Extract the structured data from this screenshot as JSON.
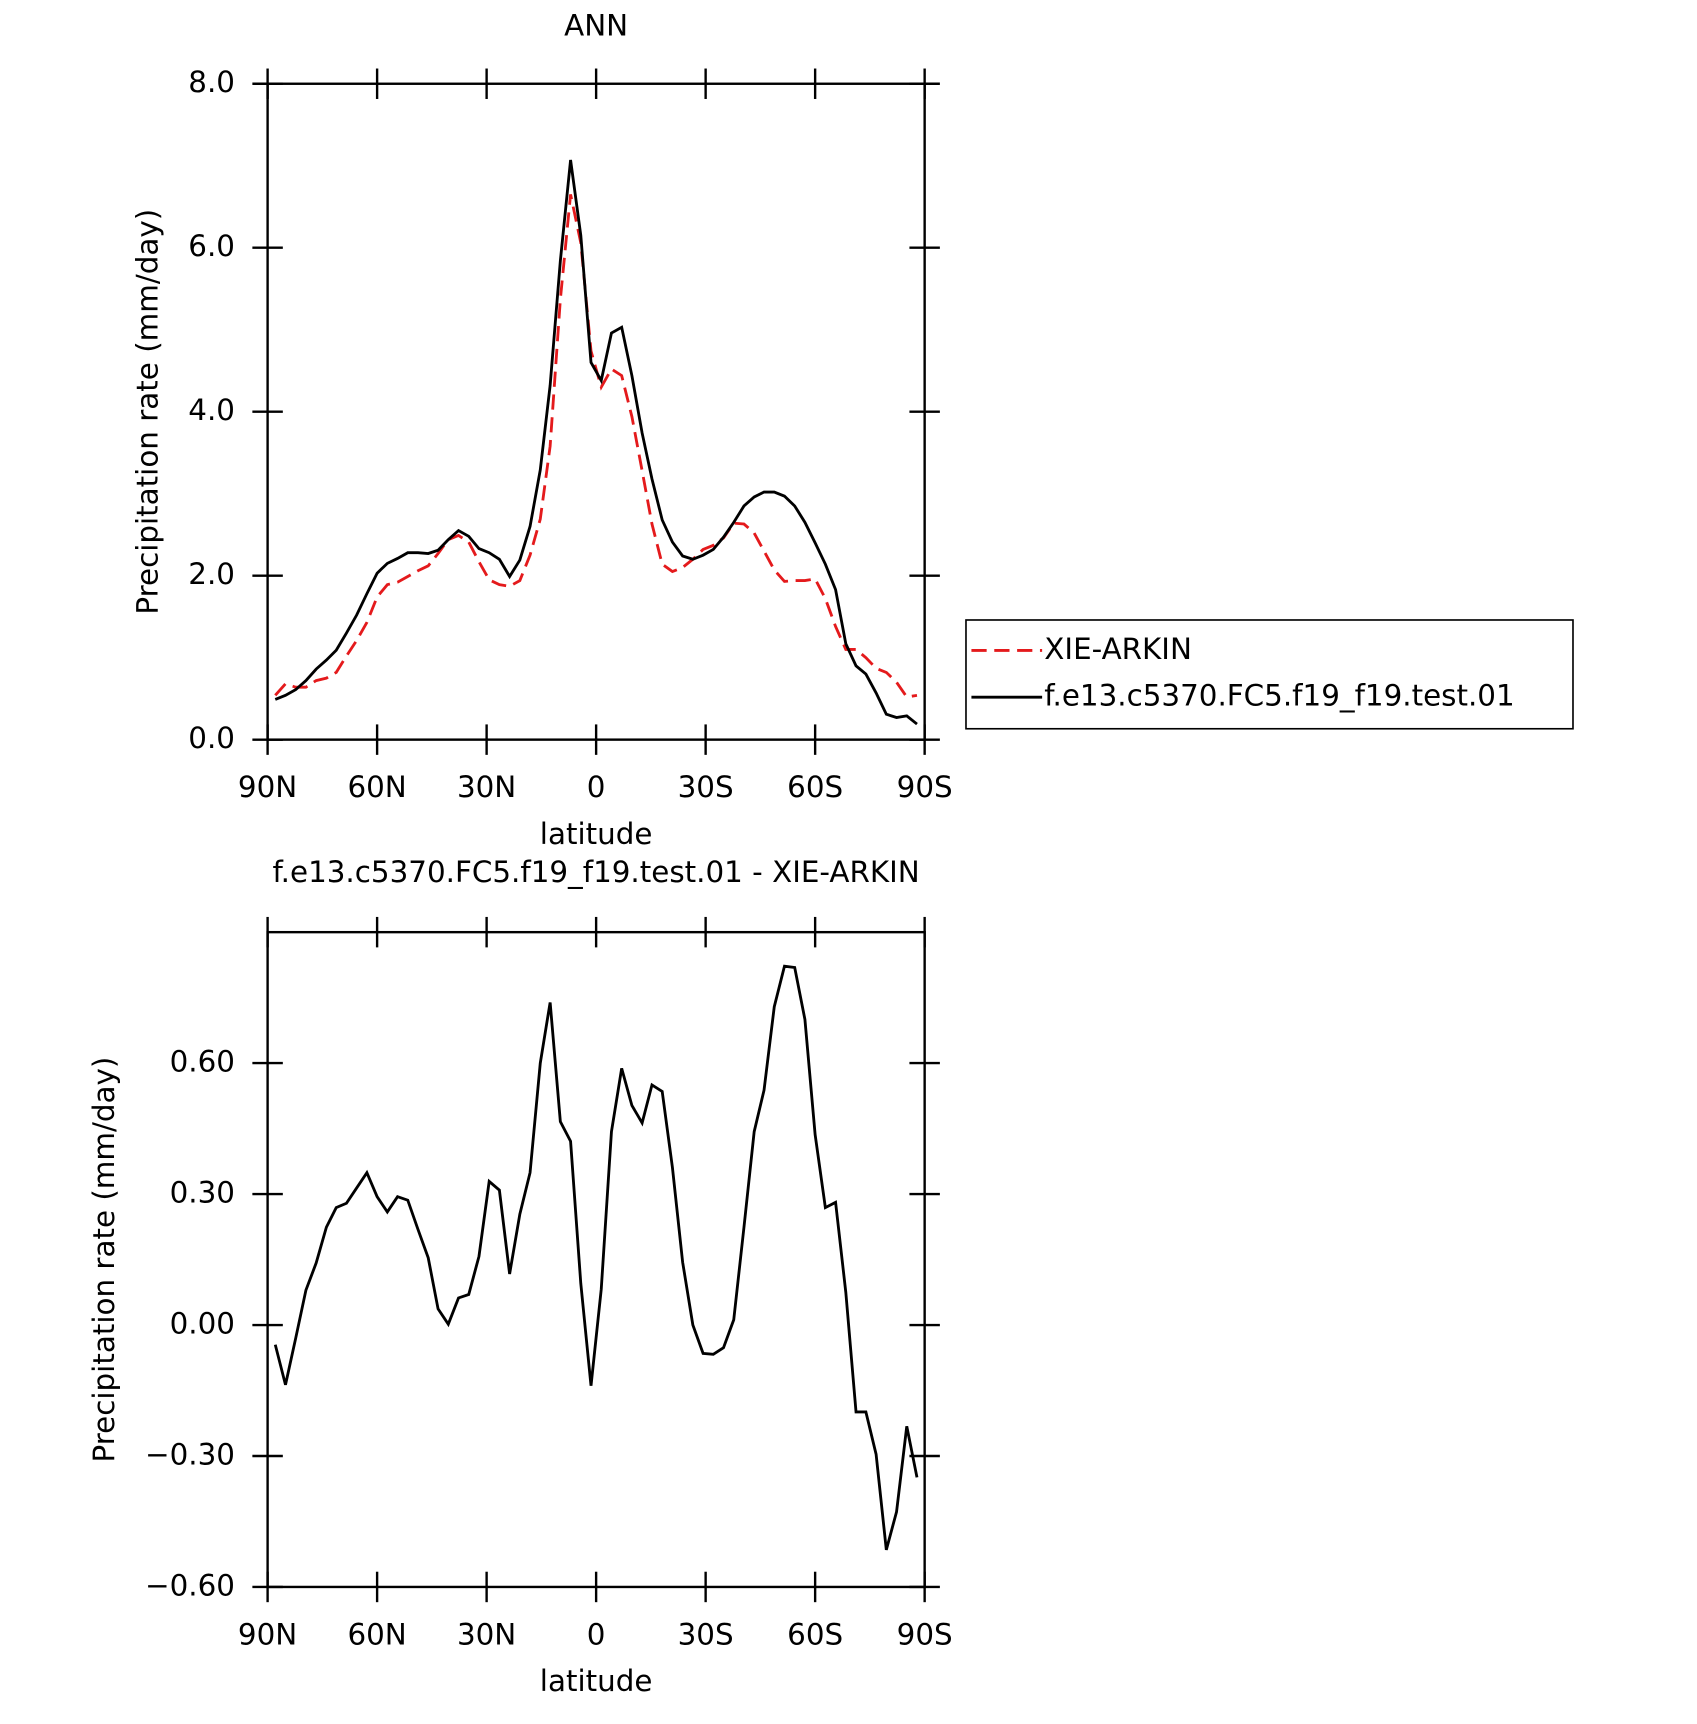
{
  "chart_data": [
    {
      "type": "line",
      "title": "ANN",
      "xlabel": "latitude",
      "ylabel": "Precipitation rate (mm/day)",
      "x": [
        87.9,
        85.1,
        82.3,
        79.5,
        76.7,
        73.9,
        71.2,
        68.4,
        65.6,
        62.8,
        60.0,
        57.2,
        54.4,
        51.6,
        48.8,
        46.0,
        43.3,
        40.5,
        37.7,
        34.9,
        32.1,
        29.3,
        26.5,
        23.7,
        20.9,
        18.1,
        15.3,
        12.6,
        9.8,
        7.0,
        4.2,
        1.4,
        -1.4,
        -4.2,
        -7.0,
        -9.8,
        -12.6,
        -15.3,
        -18.1,
        -20.9,
        -23.7,
        -26.5,
        -29.3,
        -32.1,
        -34.9,
        -37.7,
        -40.5,
        -43.3,
        -46.0,
        -48.8,
        -51.6,
        -54.4,
        -57.2,
        -60.0,
        -62.8,
        -65.6,
        -68.4,
        -71.2,
        -73.9,
        -76.7,
        -79.5,
        -82.3,
        -85.1,
        -87.9
      ],
      "series": [
        {
          "name": "XIE-ARKIN",
          "color": "#e41a1c",
          "linestyle": "dashed",
          "values": [
            0.54,
            0.68,
            0.64,
            0.64,
            0.72,
            0.75,
            0.82,
            1.02,
            1.21,
            1.43,
            1.74,
            1.89,
            1.92,
            1.99,
            2.06,
            2.12,
            2.27,
            2.44,
            2.49,
            2.41,
            2.17,
            1.95,
            1.89,
            1.87,
            1.94,
            2.25,
            2.69,
            3.58,
            5.37,
            6.65,
            6.06,
            4.74,
            4.3,
            4.52,
            4.44,
            3.94,
            3.28,
            2.63,
            2.14,
            2.05,
            2.1,
            2.2,
            2.32,
            2.37,
            2.46,
            2.64,
            2.63,
            2.52,
            2.3,
            2.07,
            1.93,
            1.94,
            1.94,
            1.96,
            1.72,
            1.38,
            1.1,
            1.1,
            1.0,
            0.87,
            0.82,
            0.7,
            0.52,
            0.54
          ]
        },
        {
          "name": "f.e13.c5370.FC5.f19_f19.test.01",
          "color": "#000000",
          "linestyle": "solid",
          "values": [
            0.49,
            0.54,
            0.61,
            0.72,
            0.86,
            0.97,
            1.09,
            1.3,
            1.52,
            1.78,
            2.03,
            2.15,
            2.21,
            2.28,
            2.28,
            2.27,
            2.31,
            2.44,
            2.55,
            2.48,
            2.33,
            2.28,
            2.2,
            1.99,
            2.19,
            2.6,
            3.29,
            4.32,
            5.84,
            7.07,
            6.15,
            4.6,
            4.38,
            4.96,
            5.03,
            4.44,
            3.74,
            3.18,
            2.68,
            2.41,
            2.24,
            2.2,
            2.25,
            2.32,
            2.47,
            2.65,
            2.85,
            2.96,
            3.02,
            3.02,
            2.97,
            2.85,
            2.65,
            2.4,
            2.14,
            1.83,
            1.17,
            0.9,
            0.8,
            0.57,
            0.31,
            0.27,
            0.29,
            0.19
          ]
        }
      ],
      "xlim": [
        90,
        -90
      ],
      "xticks": [
        {
          "value": 90,
          "label": "90N"
        },
        {
          "value": 60,
          "label": "60N"
        },
        {
          "value": 30,
          "label": "30N"
        },
        0,
        {
          "value": -30,
          "label": "30S"
        },
        {
          "value": -60,
          "label": "60S"
        },
        {
          "value": -90,
          "label": "90S"
        }
      ],
      "ylim": [
        0,
        8
      ],
      "yticks": [
        {
          "value": 0,
          "label": "0.0"
        },
        {
          "value": 2,
          "label": "2.0"
        },
        {
          "value": 4,
          "label": "4.0"
        },
        {
          "value": 6,
          "label": "6.0"
        },
        {
          "value": 8,
          "label": "8.0"
        }
      ],
      "legend": "right"
    },
    {
      "type": "line",
      "title": "f.e13.c5370.FC5.f19_f19.test.01 - XIE-ARKIN",
      "xlabel": "latitude",
      "ylabel": "Precipitation rate (mm/day)",
      "x": [
        87.9,
        85.1,
        82.3,
        79.5,
        76.7,
        73.9,
        71.2,
        68.4,
        65.6,
        62.8,
        60.0,
        57.2,
        54.4,
        51.6,
        48.8,
        46.0,
        43.3,
        40.5,
        37.7,
        34.9,
        32.1,
        29.3,
        26.5,
        23.7,
        20.9,
        18.1,
        15.3,
        12.6,
        9.8,
        7.0,
        4.2,
        1.4,
        -1.4,
        -4.2,
        -7.0,
        -9.8,
        -12.6,
        -15.3,
        -18.1,
        -20.9,
        -23.7,
        -26.5,
        -29.3,
        -32.1,
        -34.9,
        -37.7,
        -40.5,
        -43.3,
        -46.0,
        -48.8,
        -51.6,
        -54.4,
        -57.2,
        -60.0,
        -62.8,
        -65.6,
        -68.4,
        -71.2,
        -73.9,
        -76.7,
        -79.5,
        -82.3,
        -85.1,
        -87.9
      ],
      "series": [
        {
          "color": "#000000",
          "linestyle": "solid",
          "values": [
            -0.045,
            -0.137,
            -0.03,
            0.08,
            0.142,
            0.224,
            0.269,
            0.279,
            0.314,
            0.349,
            0.294,
            0.259,
            0.294,
            0.286,
            0.219,
            0.154,
            0.037,
            0.002,
            0.062,
            0.07,
            0.157,
            0.329,
            0.309,
            0.117,
            0.254,
            0.349,
            0.6,
            0.739,
            0.466,
            0.421,
            0.095,
            -0.139,
            0.082,
            0.443,
            0.588,
            0.503,
            0.463,
            0.55,
            0.535,
            0.361,
            0.144,
            0.0,
            -0.065,
            -0.067,
            -0.052,
            0.012,
            0.224,
            0.443,
            0.538,
            0.729,
            0.822,
            0.819,
            0.7,
            0.436,
            0.269,
            0.281,
            0.075,
            -0.199,
            -0.199,
            -0.296,
            -0.515,
            -0.428,
            -0.232,
            -0.349
          ]
        }
      ],
      "xlim": [
        90,
        -90
      ],
      "xticks": [
        {
          "value": 90,
          "label": "90N"
        },
        {
          "value": 60,
          "label": "60N"
        },
        {
          "value": 30,
          "label": "30N"
        },
        0,
        {
          "value": -30,
          "label": "30S"
        },
        {
          "value": -60,
          "label": "60S"
        },
        {
          "value": -90,
          "label": "90S"
        }
      ],
      "ylim": [
        -0.6,
        0.9
      ],
      "yticks": [
        {
          "value": -0.6,
          "label": "−0.60"
        },
        {
          "value": -0.3,
          "label": "−0.30"
        },
        {
          "value": 0,
          "label": "0.00"
        },
        {
          "value": 0.3,
          "label": "0.30"
        },
        {
          "value": 0.6,
          "label": "0.60"
        }
      ]
    }
  ]
}
